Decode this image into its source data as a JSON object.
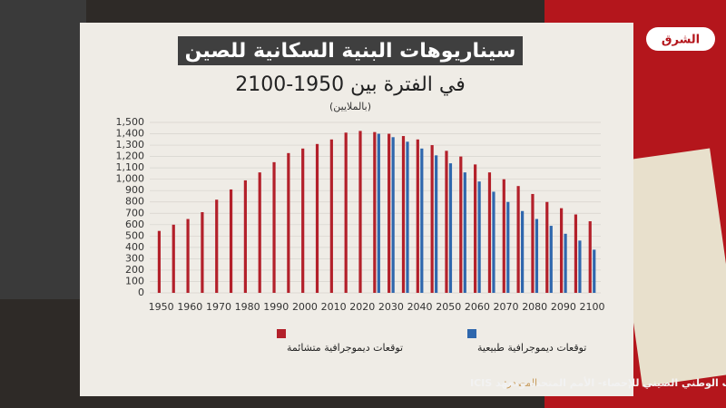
{
  "chart_data": {
    "type": "bar",
    "title": "سيناريوهات البنية السكانية للصين",
    "subtitle": "في الفترة بين 1950-2100",
    "unit_note": "(بالملايين)",
    "x": [
      1950,
      1955,
      1960,
      1965,
      1970,
      1975,
      1980,
      1985,
      1990,
      1995,
      2000,
      2005,
      2010,
      2015,
      2020,
      2025,
      2030,
      2035,
      2040,
      2045,
      2050,
      2055,
      2060,
      2065,
      2070,
      2075,
      2080,
      2085,
      2090,
      2095,
      2100
    ],
    "series": [
      {
        "name": "توقعات ديموجرافية متشائمة",
        "color": "#b3202a",
        "values": [
          545,
          600,
          650,
          710,
          820,
          910,
          990,
          1060,
          1150,
          1230,
          1270,
          1310,
          1350,
          1410,
          1425,
          1415,
          1400,
          1380,
          1350,
          1300,
          1250,
          1200,
          1130,
          1060,
          1000,
          940,
          870,
          800,
          745,
          690,
          630
        ]
      },
      {
        "name": "توقعات ديموجرافية طبيعية",
        "color": "#2f67ad",
        "values": [
          null,
          null,
          null,
          null,
          null,
          null,
          null,
          null,
          null,
          null,
          null,
          null,
          null,
          null,
          null,
          1400,
          1370,
          1330,
          1270,
          1210,
          1140,
          1060,
          980,
          890,
          800,
          720,
          650,
          590,
          520,
          460,
          380
        ]
      }
    ],
    "xlim": [
      1946,
      2103
    ],
    "xticks": [
      1950,
      1960,
      1970,
      1980,
      1990,
      2000,
      2010,
      2020,
      2030,
      2040,
      2050,
      2060,
      2070,
      2080,
      2090,
      2100
    ],
    "ylim": [
      0,
      1500
    ],
    "yticks": [
      0,
      100,
      200,
      300,
      400,
      500,
      600,
      700,
      800,
      900,
      {
        "value": 1000,
        "label": "1,000"
      },
      {
        "value": 1100,
        "label": "1,100"
      },
      {
        "value": 1200,
        "label": "1,200"
      },
      {
        "value": 1300,
        "label": "1,300"
      },
      {
        "value": 1400,
        "label": "1,400"
      },
      {
        "value": 1500,
        "label": "1,500"
      }
    ],
    "grid": true,
    "source_label": "المصدر:",
    "source": "المكتب الوطني الصيني للإحصاء- الأمم المتحدة ومعهد ICIS",
    "logo": "الشرق"
  }
}
